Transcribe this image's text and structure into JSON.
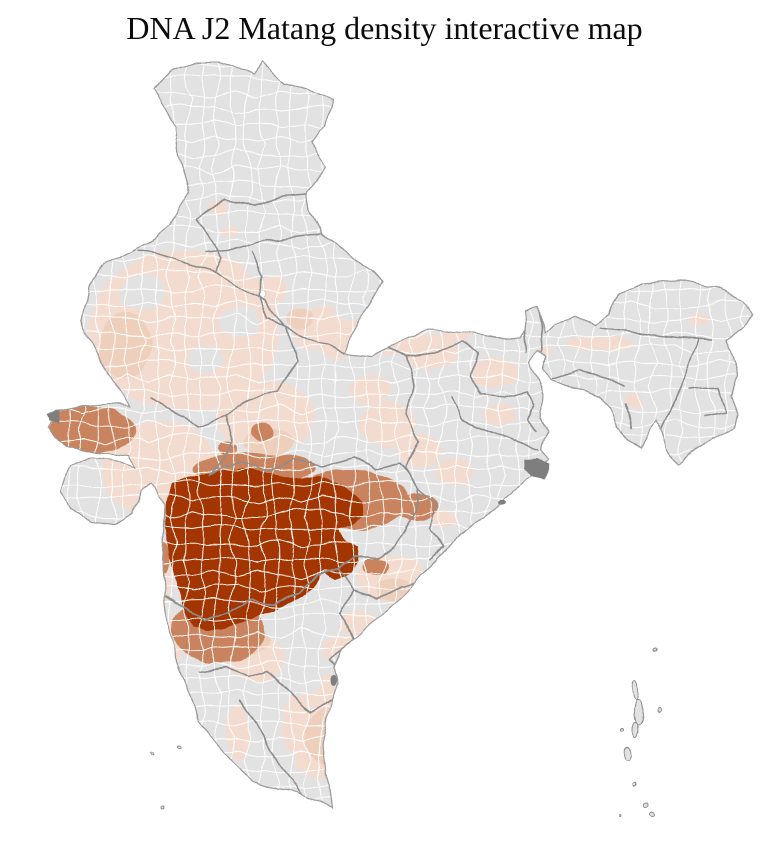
{
  "title": "DNA J2 Matang density interactive map",
  "map": {
    "country": "India",
    "unit": "districts",
    "colors": {
      "background": "#ffffff",
      "district-no-data": "#e3e2e2",
      "density-very-low": "#f3dccf",
      "density-low": "#eecfbc",
      "density-medium": "#c9845f",
      "density-high": "#a23502",
      "district-border": "#ffffff",
      "state-border": "#8d8d8d",
      "coast": "#9b9b9b",
      "water-feature": "#7e7e7e"
    },
    "density_scale": [
      {
        "level": "none",
        "color": "#e3e2e2"
      },
      {
        "level": "very-low",
        "color": "#f3dccf"
      },
      {
        "level": "low",
        "color": "#eecfbc"
      },
      {
        "level": "medium",
        "color": "#c9845f"
      },
      {
        "level": "high",
        "color": "#a23502"
      }
    ]
  }
}
